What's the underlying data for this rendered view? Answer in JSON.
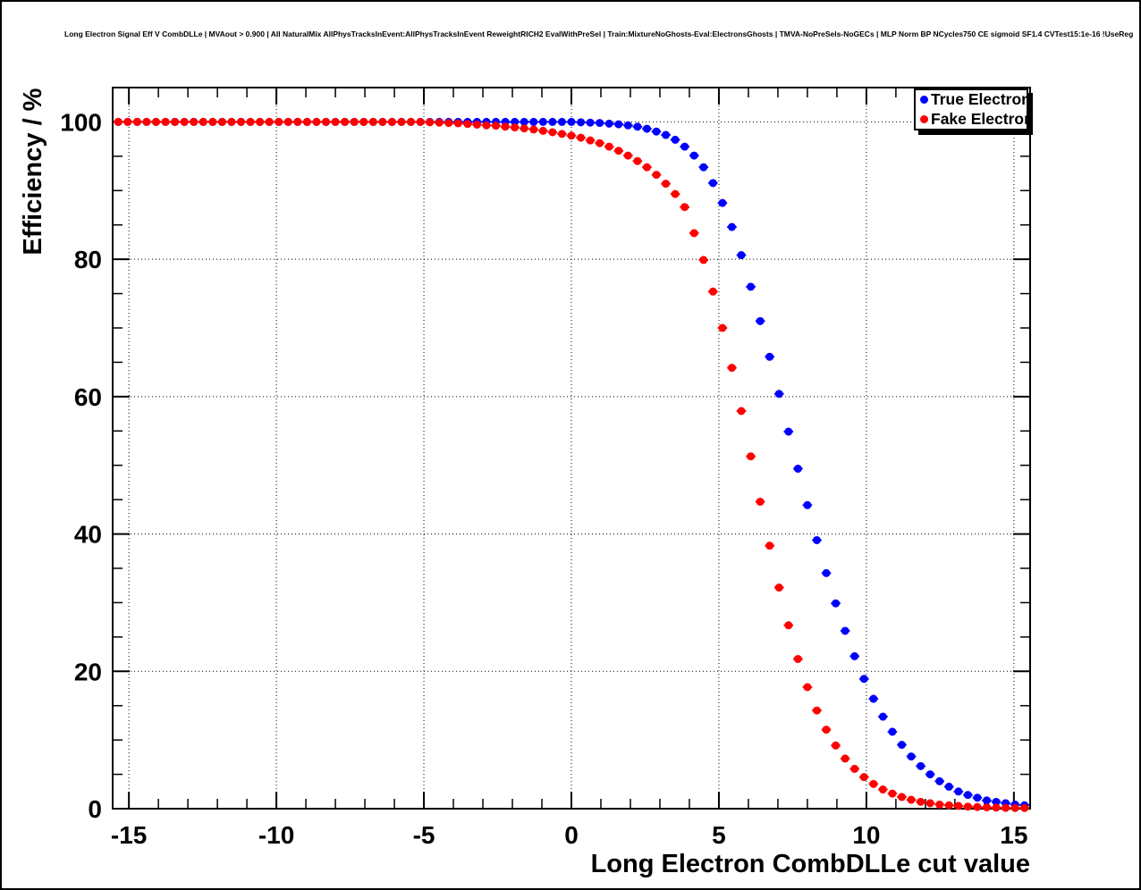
{
  "canvas": {
    "header_text": "Long Electron Signal Eff V CombDLLe | MVAout > 0.900 | All NaturalMix AllPhysTracksInEvent:AllPhysTracksInEvent ReweightRICH2 EvalWithPreSel | Train:MixtureNoGhosts-Eval:ElectronsGhosts | TMVA-NoPreSels-NoGECs | MLP Norm BP NCycles750 CE sigmoid SF1.4 CVTest15:1e-16 !UseReg"
  },
  "legend": {
    "position": "top-right",
    "entries": [
      {
        "label": "True Electron",
        "color": "#0000ff",
        "marker": "filled-circle"
      },
      {
        "label": "Fake Electron",
        "color": "#ff0000",
        "marker": "filled-circle"
      }
    ]
  },
  "chart_data": {
    "type": "scatter",
    "title": "",
    "xlabel": "Long Electron CombDLLe cut value",
    "ylabel": "Efficiency / %",
    "xlim": [
      -15.55,
      15.55
    ],
    "ylim": [
      0,
      105
    ],
    "x_ticks": [
      -15,
      -10,
      -5,
      0,
      5,
      10,
      15
    ],
    "x_tick_labels": [
      "-15",
      "-10",
      "-5",
      "0",
      "5",
      "10",
      "15"
    ],
    "y_ticks": [
      0,
      20,
      40,
      60,
      80,
      100
    ],
    "y_tick_labels": [
      "0",
      "20",
      "40",
      "60",
      "80",
      "100"
    ],
    "x_minor_step": 1,
    "y_minor_step": 5,
    "grid": "dotted-at-major-ticks",
    "marker": "filled-circle-with-x-error-bars",
    "x_error_half_width": 0.16,
    "x": [
      -15.36,
      -15.04,
      -14.72,
      -14.4,
      -14.08,
      -13.76,
      -13.44,
      -13.12,
      -12.8,
      -12.48,
      -12.16,
      -11.84,
      -11.52,
      -11.2,
      -10.88,
      -10.56,
      -10.24,
      -9.92,
      -9.6,
      -9.28,
      -8.96,
      -8.64,
      -8.32,
      -8,
      -7.68,
      -7.36,
      -7.04,
      -6.72,
      -6.4,
      -6.08,
      -5.76,
      -5.44,
      -5.12,
      -4.8,
      -4.48,
      -4.16,
      -3.84,
      -3.52,
      -3.2,
      -2.88,
      -2.56,
      -2.24,
      -1.92,
      -1.6,
      -1.28,
      -0.96,
      -0.64,
      -0.32,
      0,
      0.32,
      0.64,
      0.96,
      1.28,
      1.6,
      1.92,
      2.24,
      2.56,
      2.88,
      3.2,
      3.52,
      3.84,
      4.16,
      4.48,
      4.8,
      5.12,
      5.44,
      5.76,
      6.08,
      6.4,
      6.72,
      7.04,
      7.36,
      7.68,
      8,
      8.32,
      8.64,
      8.96,
      9.28,
      9.6,
      9.92,
      10.24,
      10.56,
      10.88,
      11.2,
      11.52,
      11.84,
      12.16,
      12.48,
      12.8,
      13.12,
      13.44,
      13.76,
      14.08,
      14.4,
      14.72,
      15.04,
      15.36
    ],
    "series": [
      {
        "name": "True Electron",
        "color": "#0000ff",
        "values": [
          100,
          100,
          100,
          100,
          100,
          100,
          100,
          100,
          100,
          100,
          100,
          100,
          100,
          100,
          100,
          100,
          100,
          100,
          100,
          100,
          100,
          100,
          100,
          100,
          100,
          100,
          100,
          100,
          100,
          100,
          100,
          100,
          100,
          100,
          100,
          100,
          100,
          100,
          100,
          100,
          100,
          100,
          100,
          100,
          100,
          100,
          100,
          100,
          100,
          99.95,
          99.9,
          99.85,
          99.75,
          99.65,
          99.5,
          99.3,
          99,
          98.6,
          98.1,
          97.4,
          96.4,
          95.1,
          93.4,
          91.1,
          88.2,
          84.7,
          80.6,
          76,
          71,
          65.8,
          60.4,
          54.9,
          49.5,
          44.2,
          39.1,
          34.3,
          29.9,
          25.9,
          22.2,
          18.9,
          16,
          13.4,
          11.2,
          9.3,
          7.6,
          6.2,
          5,
          4,
          3.2,
          2.5,
          2,
          1.6,
          1.2,
          1,
          0.8,
          0.6,
          0.5
        ]
      },
      {
        "name": "Fake Electron",
        "color": "#ff0000",
        "values": [
          100,
          100,
          100,
          100,
          100,
          100,
          100,
          100,
          100,
          100,
          100,
          100,
          100,
          100,
          100,
          100,
          100,
          100,
          100,
          100,
          100,
          100,
          100,
          100,
          100,
          100,
          100,
          100,
          100,
          100,
          100,
          100,
          100,
          99.95,
          99.9,
          99.85,
          99.8,
          99.7,
          99.6,
          99.5,
          99.45,
          99.3,
          99.2,
          99.05,
          98.9,
          98.7,
          98.5,
          98.25,
          98,
          97.7,
          97.3,
          96.9,
          96.4,
          95.8,
          95.1,
          94.3,
          93.4,
          92.3,
          91,
          89.5,
          87.6,
          83.8,
          79.9,
          75.3,
          70,
          64.2,
          57.9,
          51.3,
          44.7,
          38.3,
          32.2,
          26.7,
          21.8,
          17.7,
          14.3,
          11.5,
          9.2,
          7.3,
          5.8,
          4.6,
          3.6,
          2.8,
          2.2,
          1.7,
          1.3,
          1,
          0.8,
          0.6,
          0.5,
          0.4,
          0.3,
          0.25,
          0.2,
          0.15,
          0.12,
          0.1,
          0.1
        ]
      }
    ]
  }
}
